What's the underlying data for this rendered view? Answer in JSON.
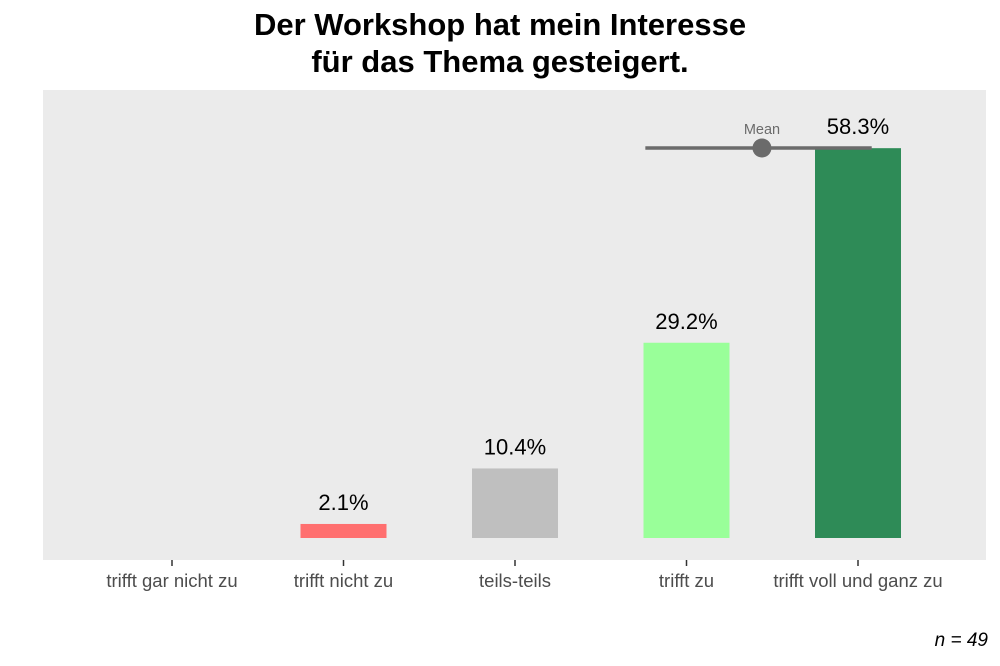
{
  "title_lines": [
    "Der Workshop hat mein Interesse",
    "für das Thema gesteigert."
  ],
  "note": "n = 49",
  "colors": {
    "panel": "#ebebeb",
    "mean": "#6b6b6b",
    "tick_text": "#4d4d4d"
  },
  "chart_data": {
    "type": "bar",
    "title": "Der Workshop hat mein Interesse für das Thema gesteigert.",
    "categories": [
      "trifft gar nicht zu",
      "trifft nicht zu",
      "teils-teils",
      "trifft zu",
      "trifft voll und ganz zu"
    ],
    "values": [
      0,
      2.1,
      10.4,
      29.2,
      58.3
    ],
    "value_labels": [
      "",
      "2.1%",
      "10.4%",
      "29.2%",
      "58.3%"
    ],
    "bar_colors": [
      "#e15759",
      "#ff6f6f",
      "#bfbfbf",
      "#99ff99",
      "#2e8b57"
    ],
    "ylim": [
      0,
      67
    ],
    "grid": false,
    "mean": {
      "label": "Mean",
      "value": 4.44,
      "range_low": 3.76,
      "range_high": 5.08
    }
  }
}
